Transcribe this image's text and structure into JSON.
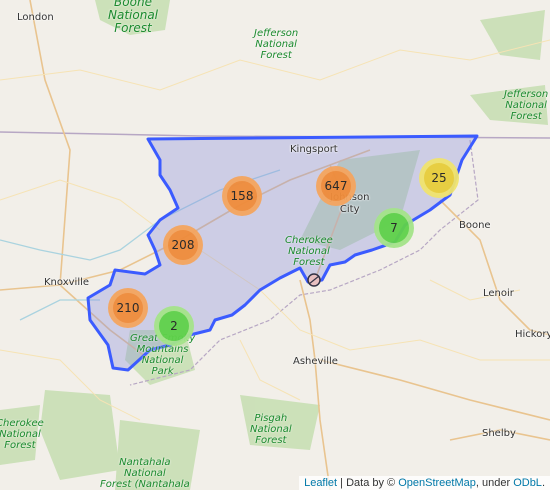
{
  "cities": {
    "london": "London",
    "knoxville": "Knoxville",
    "kingsport": "Kingsport",
    "johnson_city": "Johnson\nCity",
    "boone": "Boone",
    "lenoir": "Lenoir",
    "hickory": "Hickory",
    "asheville": "Asheville",
    "shelby": "Shelby"
  },
  "forests": {
    "boone": "Boone\nNational\nForest",
    "jefferson_top": "Jefferson\nNational\nForest",
    "jefferson_right": "Jefferson\nNational\nForest",
    "cherokee_center": "Cherokee\nNational\nForest",
    "smoky": "Great Smoky\nMountains\nNational\nPark",
    "cherokee_left": "Cherokee\nNational\nForest",
    "pisgah": "Pisgah\nNational\nForest",
    "nantahala": "Nantahala\nNational\nForest (Nantahala"
  },
  "clusters": [
    {
      "count": "158",
      "level": "orange"
    },
    {
      "count": "647",
      "level": "orange"
    },
    {
      "count": "25",
      "level": "yellow"
    },
    {
      "count": "7",
      "level": "green"
    },
    {
      "count": "208",
      "level": "orange"
    },
    {
      "count": "210",
      "level": "orange"
    },
    {
      "count": "2",
      "level": "green"
    }
  ],
  "colors": {
    "orange_outer": "#f5a55f",
    "orange_inner": "#f08c3a",
    "yellow_outer": "#f0e46e",
    "yellow_inner": "#e9cf3a",
    "green_outer": "#a5e48a",
    "green_inner": "#5fd24a",
    "region_stroke": "#3b5bff",
    "region_fill": "#8a90e0"
  },
  "attribution": {
    "leaflet": "Leaflet",
    "data_by": " | Data by © ",
    "osm": "OpenStreetMap",
    "under": ", under ",
    "odbl": "ODbL",
    "end": "."
  }
}
